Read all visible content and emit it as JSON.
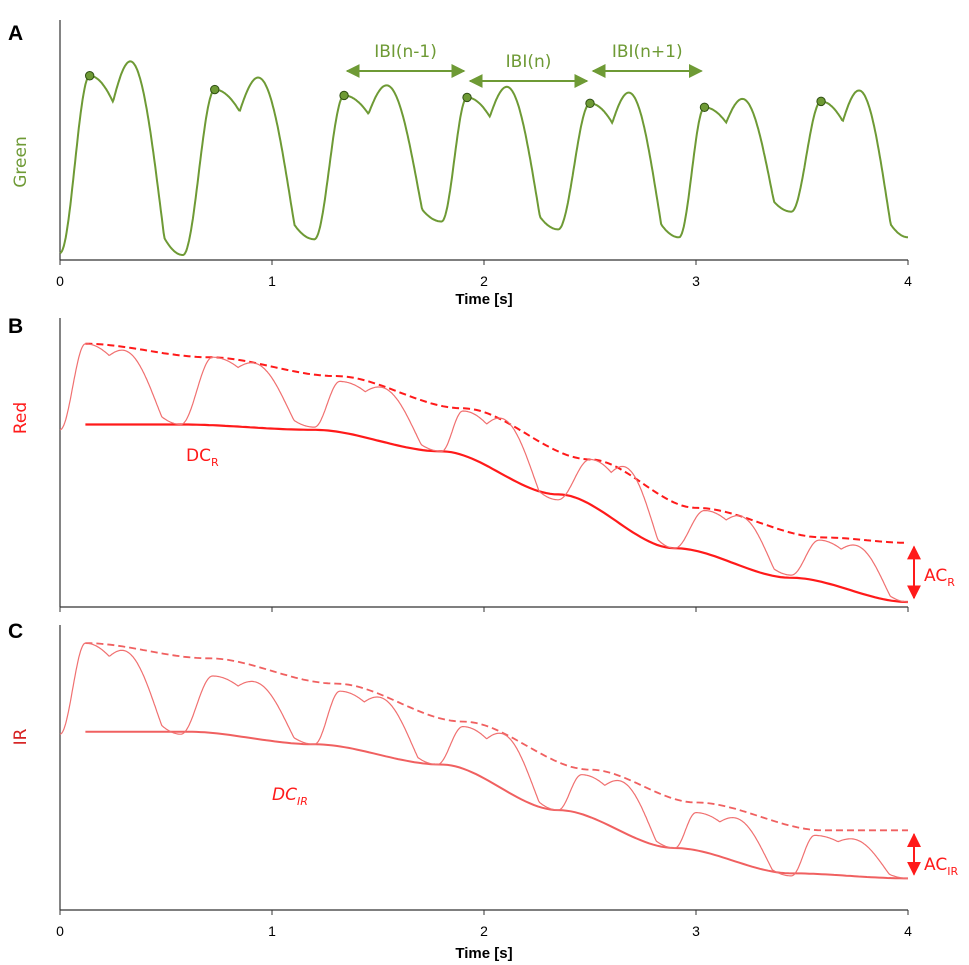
{
  "colors": {
    "green": "#6e9a35",
    "green_dark": "#3f6b1f",
    "red": "#ff1a1a",
    "red_soft": "#f07070",
    "axis": "#333333"
  },
  "chart_data": [
    {
      "type": "line",
      "panel": "A",
      "ylabel": "Green",
      "xlabel": "Time [s]",
      "xlim": [
        0,
        4
      ],
      "xticks": [
        "0",
        "1",
        "2",
        "3",
        "4"
      ],
      "peaks": {
        "x": [
          0.14,
          0.73,
          1.34,
          1.92,
          2.5,
          3.04,
          3.59
        ],
        "y": [
          0.92,
          0.85,
          0.82,
          0.81,
          0.78,
          0.76,
          0.79
        ]
      },
      "troughs": {
        "x": [
          0.0,
          0.58,
          1.2,
          1.8,
          2.35,
          2.92,
          3.45,
          4.0
        ],
        "y": [
          0.02,
          0.01,
          0.09,
          0.18,
          0.14,
          0.1,
          0.23,
          0.1
        ]
      },
      "ibi_annotations": [
        {
          "label": "IBI(n-1)",
          "from": 1.34,
          "to": 1.92
        },
        {
          "label": "IBI(n)",
          "from": 1.92,
          "to": 2.5
        },
        {
          "label": "IBI(n+1)",
          "from": 2.5,
          "to": 3.04
        }
      ]
    },
    {
      "type": "line",
      "panel": "B",
      "ylabel": "Red",
      "xlim": [
        0,
        4
      ],
      "peaks": {
        "x": [
          0.12,
          0.72,
          1.32,
          1.9,
          2.5,
          3.04,
          3.58
        ],
        "y": [
          0.96,
          0.91,
          0.82,
          0.71,
          0.53,
          0.34,
          0.23
        ]
      },
      "troughs": {
        "x": [
          0.0,
          0.57,
          1.2,
          1.8,
          2.35,
          2.9,
          3.45,
          4.0
        ],
        "y": [
          0.64,
          0.66,
          0.65,
          0.56,
          0.38,
          0.2,
          0.1,
          0.0
        ]
      },
      "upper_envelope": {
        "x": [
          0.12,
          0.7,
          1.3,
          1.9,
          2.5,
          3.0,
          3.6,
          4.0
        ],
        "y": [
          0.96,
          0.91,
          0.84,
          0.72,
          0.53,
          0.35,
          0.24,
          0.22
        ]
      },
      "dc_line": {
        "x": [
          0.12,
          0.57,
          1.2,
          1.8,
          2.35,
          2.9,
          3.45,
          4.0
        ],
        "y": [
          0.66,
          0.66,
          0.64,
          0.56,
          0.4,
          0.2,
          0.09,
          0.0
        ]
      },
      "dc_label": {
        "main": "DC",
        "sub": "R"
      },
      "ac_label": {
        "main": "AC",
        "sub": "R"
      }
    },
    {
      "type": "line",
      "panel": "C",
      "ylabel": "IR",
      "xlabel": "Time [s]",
      "xlim": [
        0,
        4
      ],
      "xticks": [
        "0",
        "1",
        "2",
        "3",
        "4"
      ],
      "peaks": {
        "x": [
          0.12,
          0.72,
          1.32,
          1.9,
          2.46,
          3.0,
          3.56
        ],
        "y": [
          0.96,
          0.83,
          0.77,
          0.63,
          0.44,
          0.29,
          0.2
        ]
      },
      "troughs": {
        "x": [
          0.0,
          0.57,
          1.2,
          1.78,
          2.35,
          2.9,
          3.45,
          4.0
        ],
        "y": [
          0.6,
          0.6,
          0.56,
          0.48,
          0.3,
          0.15,
          0.04,
          0.03
        ]
      },
      "upper_envelope": {
        "x": [
          0.12,
          0.7,
          1.3,
          1.9,
          2.5,
          3.0,
          3.6,
          4.0
        ],
        "y": [
          0.96,
          0.9,
          0.8,
          0.65,
          0.46,
          0.33,
          0.22,
          0.22
        ]
      },
      "dc_line": {
        "x": [
          0.12,
          0.6,
          1.2,
          1.8,
          2.35,
          2.9,
          3.45,
          4.0
        ],
        "y": [
          0.61,
          0.61,
          0.56,
          0.48,
          0.3,
          0.15,
          0.05,
          0.03
        ]
      },
      "dc_label": {
        "main": "DC",
        "sub": "IR"
      },
      "ac_label": {
        "main": "AC",
        "sub": "IR"
      }
    }
  ]
}
